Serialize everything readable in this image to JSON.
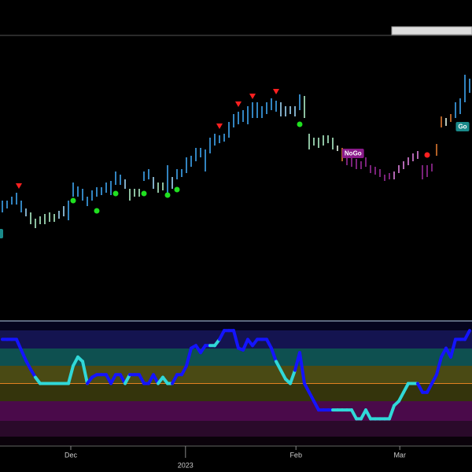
{
  "chart_data": [
    {
      "type": "ohlc",
      "highs": [
        145,
        145,
        150,
        155,
        145,
        135,
        130,
        122,
        125,
        128,
        130,
        128,
        132,
        138,
        145,
        168,
        163,
        160,
        150,
        158,
        162,
        162,
        168,
        170,
        182,
        178,
        172,
        160,
        160,
        160,
        182,
        185,
        175,
        168,
        168,
        190,
        175,
        185,
        185,
        200,
        202,
        212,
        212,
        210,
        225,
        230,
        228,
        230,
        245,
        255,
        258,
        260,
        265,
        270,
        270,
        265,
        270,
        275,
        272,
        270,
        265,
        265,
        265,
        280,
        278,
        230,
        225,
        225,
        228,
        228,
        225,
        215,
        212,
        210,
        200,
        198,
        195,
        200,
        190,
        188,
        185,
        178,
        180,
        182,
        190,
        195,
        200,
        205,
        208,
        190,
        190,
        192,
        217,
        252,
        250,
        255,
        270,
        275,
        305,
        300
      ],
      "lows": [
        130,
        135,
        140,
        140,
        130,
        125,
        115,
        110,
        115,
        115,
        118,
        118,
        122,
        125,
        120,
        150,
        150,
        145,
        138,
        145,
        150,
        152,
        155,
        152,
        165,
        165,
        160,
        145,
        150,
        150,
        170,
        172,
        160,
        155,
        158,
        155,
        160,
        172,
        175,
        180,
        188,
        195,
        200,
        182,
        205,
        215,
        218,
        220,
        225,
        238,
        242,
        245,
        242,
        250,
        250,
        250,
        255,
        260,
        258,
        252,
        252,
        255,
        252,
        260,
        250,
        210,
        215,
        212,
        215,
        218,
        210,
        208,
        195,
        190,
        188,
        185,
        185,
        188,
        180,
        178,
        175,
        170,
        172,
        172,
        180,
        185,
        190,
        195,
        198,
        172,
        175,
        182,
        202,
        238,
        240,
        245,
        250,
        255,
        270,
        282
      ],
      "colors": [
        "#3ea6f0",
        "#3ea6f0",
        "#3ea6f0",
        "#3ea6f0",
        "#3ea6f0",
        "#a0d8f8",
        "#b0f0c8",
        "#b0f0c8",
        "#b0f0c8",
        "#b0f0c8",
        "#b0f0c8",
        "#b0f0c8",
        "#a0d8f8",
        "#a0d8f8",
        "#3ea6f0",
        "#3ea6f0",
        "#3ea6f0",
        "#3ea6f0",
        "#3ea6f0",
        "#3ea6f0",
        "#3ea6f0",
        "#3ea6f0",
        "#3ea6f0",
        "#3ea6f0",
        "#3ea6f0",
        "#3ea6f0",
        "#a0d8f8",
        "#b0f0c8",
        "#b0f0c8",
        "#b0f0c8",
        "#3ea6f0",
        "#3ea6f0",
        "#a0d8f8",
        "#b0f0c8",
        "#b0f0c8",
        "#3ea6f0",
        "#a0d8f8",
        "#3ea6f0",
        "#3ea6f0",
        "#3ea6f0",
        "#3ea6f0",
        "#3ea6f0",
        "#3ea6f0",
        "#3ea6f0",
        "#3ea6f0",
        "#3ea6f0",
        "#3ea6f0",
        "#3ea6f0",
        "#3ea6f0",
        "#3ea6f0",
        "#3ea6f0",
        "#3ea6f0",
        "#3ea6f0",
        "#3ea6f0",
        "#3ea6f0",
        "#3ea6f0",
        "#3ea6f0",
        "#3ea6f0",
        "#3ea6f0",
        "#a0d8f8",
        "#a0d8f8",
        "#a0d8f8",
        "#a0d8f8",
        "#3ea6f0",
        "#b0f0c8",
        "#b0f0c8",
        "#b0f0c8",
        "#b0f0c8",
        "#b0f0c8",
        "#b0f0c8",
        "#b0f0c8",
        "#e8f8e8",
        "#e07830",
        "#9a2a9a",
        "#9a2a9a",
        "#9a2a9a",
        "#9a2a9a",
        "#9a2a9a",
        "#9a2a9a",
        "#9a2a9a",
        "#9a2a9a",
        "#9a2a9a",
        "#9a2a9a",
        "#e080e0",
        "#e080e0",
        "#e080e0",
        "#e080e0",
        "#e080e0",
        "#e080e0",
        "#9a2a9a",
        "#9a2a9a",
        "#9a2a9a",
        "#e07830",
        "#e07830",
        "#e8f8e8",
        "#e07830",
        "#3ea6f0",
        "#3ea6f0",
        "#3ea6f0",
        "#3ea6f0"
      ],
      "xlim": [
        -0.5,
        99.5
      ],
      "ylim": [
        -5,
        355
      ],
      "xticks": [
        {
          "value": 14.5,
          "label": "Dec"
        },
        {
          "value": 62.2,
          "label": "Feb"
        },
        {
          "value": 84.2,
          "label": "Mar"
        }
      ],
      "year_ticks": [
        {
          "value": 38.8,
          "label": "2023"
        }
      ],
      "markers": [
        {
          "shape": "triangle-down",
          "color": "#ff2020",
          "x": 3.5,
          "y": 164
        },
        {
          "shape": "triangle-down",
          "color": "#ff2020",
          "x": 46,
          "y": 240
        },
        {
          "shape": "triangle-down",
          "color": "#ff2020",
          "x": 50,
          "y": 268
        },
        {
          "shape": "triangle-down",
          "color": "#ff2020",
          "x": 53,
          "y": 278
        },
        {
          "shape": "triangle-down",
          "color": "#ff2020",
          "x": 58,
          "y": 284
        },
        {
          "shape": "circle",
          "color": "#20e020",
          "x": 15,
          "y": 145
        },
        {
          "shape": "circle",
          "color": "#20e020",
          "x": 20,
          "y": 132
        },
        {
          "shape": "circle",
          "color": "#20e020",
          "x": 24,
          "y": 154
        },
        {
          "shape": "circle",
          "color": "#20e020",
          "x": 30,
          "y": 154
        },
        {
          "shape": "circle",
          "color": "#20e020",
          "x": 35,
          "y": 152
        },
        {
          "shape": "circle",
          "color": "#20e020",
          "x": 37,
          "y": 159
        },
        {
          "shape": "circle",
          "color": "#20e020",
          "x": 63,
          "y": 242
        },
        {
          "shape": "circle",
          "color": "#ff2020",
          "x": 90,
          "y": 203
        }
      ],
      "labels": [
        {
          "text": "Go",
          "color": "#1a8a8a",
          "x": 97.5,
          "y": 239
        },
        {
          "text": "NoGo",
          "color": "#8a1a8a",
          "x": 74.3,
          "y": 205
        }
      ]
    },
    {
      "type": "line",
      "values": [
        5,
        5,
        5,
        5,
        3.8,
        2.6,
        1.6,
        0.7,
        0,
        0,
        0,
        0,
        0,
        0,
        0,
        2,
        3,
        2.5,
        0,
        0.7,
        1,
        1,
        1,
        0,
        1,
        1,
        0,
        1,
        1,
        1,
        0,
        0,
        1,
        0,
        0.7,
        0,
        0,
        1,
        1,
        2,
        4,
        4.3,
        3.5,
        4.3,
        4.3,
        4.3,
        5,
        6,
        6,
        6,
        4,
        3.8,
        5,
        4.3,
        5,
        5,
        5,
        4,
        2.5,
        1.5,
        0.5,
        0,
        1.5,
        3.5,
        0,
        -1,
        -2,
        -3,
        -3,
        -3,
        -3,
        -3,
        -3,
        -3,
        -3,
        -4,
        -4,
        -3,
        -4,
        -4,
        -4,
        -4,
        -4,
        -2.5,
        -2,
        -1,
        0,
        0,
        0,
        -1,
        -1,
        0,
        1,
        3,
        4,
        3,
        5,
        5,
        5,
        6
      ],
      "colors": [
        "#1414ff",
        "#1414ff",
        "#1414ff",
        "#1414ff",
        "#1414ff",
        "#1414ff",
        "#1414ff",
        "#30d8d8",
        "#30d8d8",
        "#30d8d8",
        "#30d8d8",
        "#30d8d8",
        "#30d8d8",
        "#30d8d8",
        "#30d8d8",
        "#30d8d8",
        "#30d8d8",
        "#30d8d8",
        "#1414ff",
        "#1414ff",
        "#1414ff",
        "#1414ff",
        "#1414ff",
        "#1414ff",
        "#1414ff",
        "#1414ff",
        "#30d8d8",
        "#1414ff",
        "#1414ff",
        "#1414ff",
        "#1414ff",
        "#1414ff",
        "#1414ff",
        "#30d8d8",
        "#30d8d8",
        "#30d8d8",
        "#1414ff",
        "#1414ff",
        "#1414ff",
        "#1414ff",
        "#1414ff",
        "#1414ff",
        "#1414ff",
        "#1414ff",
        "#30d8d8",
        "#30d8d8",
        "#1414ff",
        "#1414ff",
        "#1414ff",
        "#1414ff",
        "#1414ff",
        "#1414ff",
        "#1414ff",
        "#1414ff",
        "#1414ff",
        "#1414ff",
        "#1414ff",
        "#1414ff",
        "#30d8d8",
        "#30d8d8",
        "#30d8d8",
        "#30d8d8",
        "#1414ff",
        "#1414ff",
        "#1414ff",
        "#1414ff",
        "#1414ff",
        "#1414ff",
        "#1414ff",
        "#1414ff",
        "#30d8d8",
        "#30d8d8",
        "#30d8d8",
        "#30d8d8",
        "#30d8d8",
        "#30d8d8",
        "#30d8d8",
        "#30d8d8",
        "#30d8d8",
        "#30d8d8",
        "#30d8d8",
        "#30d8d8",
        "#30d8d8",
        "#30d8d8",
        "#30d8d8",
        "#30d8d8",
        "#30d8d8",
        "#30d8d8",
        "#1414ff",
        "#1414ff",
        "#1414ff",
        "#1414ff",
        "#1414ff",
        "#1414ff",
        "#1414ff",
        "#1414ff",
        "#1414ff",
        "#1414ff",
        "#1414ff",
        "#1414ff"
      ],
      "xlim": [
        -0.5,
        99.5
      ],
      "ylim": [
        -7,
        7
      ],
      "zero_line_color": "#e08020"
    }
  ]
}
